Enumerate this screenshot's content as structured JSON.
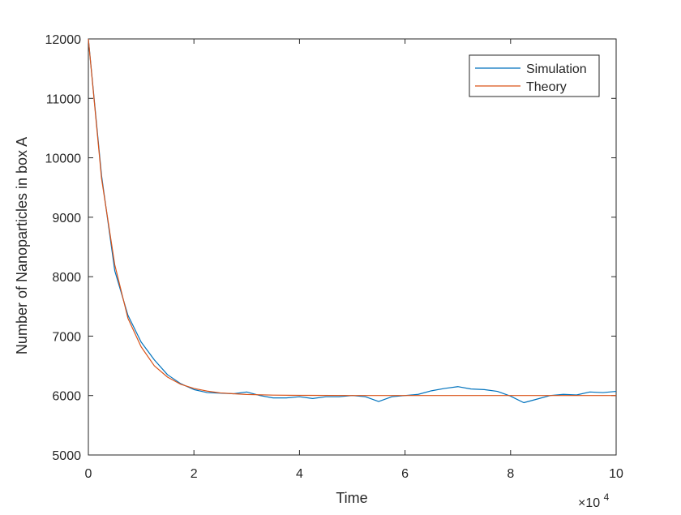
{
  "chart_data": {
    "type": "line",
    "title": "",
    "xlabel": "Time",
    "ylabel": "Number of Nanoparticles in box A",
    "x_exponent_label": {
      "base": "×10",
      "exponent": "4"
    },
    "xlim": [
      0,
      10
    ],
    "ylim": [
      5000,
      12000
    ],
    "xticks": [
      0,
      2,
      4,
      6,
      8,
      10
    ],
    "xtick_labels": [
      "0",
      "2",
      "4",
      "6",
      "8",
      "10"
    ],
    "yticks": [
      5000,
      6000,
      7000,
      8000,
      9000,
      10000,
      11000,
      12000
    ],
    "ytick_labels": [
      "5000",
      "6000",
      "7000",
      "8000",
      "9000",
      "10000",
      "11000",
      "12000"
    ],
    "grid": false,
    "legend_position": "top-right",
    "series": [
      {
        "name": "Simulation",
        "color": "#0072BD",
        "x": [
          0,
          0.25,
          0.5,
          0.75,
          1.0,
          1.25,
          1.5,
          1.75,
          2.0,
          2.25,
          2.5,
          2.75,
          3.0,
          3.25,
          3.5,
          3.75,
          4.0,
          4.25,
          4.5,
          4.75,
          5.0,
          5.25,
          5.5,
          5.75,
          6.0,
          6.25,
          6.5,
          6.75,
          7.0,
          7.25,
          7.5,
          7.75,
          8.0,
          8.25,
          8.5,
          8.75,
          9.0,
          9.25,
          9.5,
          9.75,
          10.0
        ],
        "values": [
          12000,
          9700,
          8100,
          7350,
          6900,
          6600,
          6350,
          6200,
          6100,
          6050,
          6040,
          6030,
          6060,
          6000,
          5960,
          5960,
          5980,
          5950,
          5980,
          5980,
          6000,
          5980,
          5900,
          5980,
          6000,
          6020,
          6080,
          6120,
          6150,
          6110,
          6100,
          6070,
          5990,
          5880,
          5940,
          6000,
          6020,
          6010,
          6060,
          6050,
          6070
        ]
      },
      {
        "name": "Theory",
        "color": "#D95319",
        "x": [
          0,
          0.25,
          0.5,
          0.75,
          1.0,
          1.25,
          1.5,
          1.75,
          2.0,
          2.25,
          2.5,
          2.75,
          3.0,
          3.5,
          4.0,
          5.0,
          6.0,
          7.0,
          8.0,
          9.0,
          10.0
        ],
        "values": [
          12000,
          9650,
          8200,
          7300,
          6820,
          6500,
          6310,
          6190,
          6120,
          6075,
          6045,
          6030,
          6018,
          6007,
          6003,
          6000,
          6000,
          6000,
          6000,
          6000,
          6000
        ]
      }
    ]
  }
}
